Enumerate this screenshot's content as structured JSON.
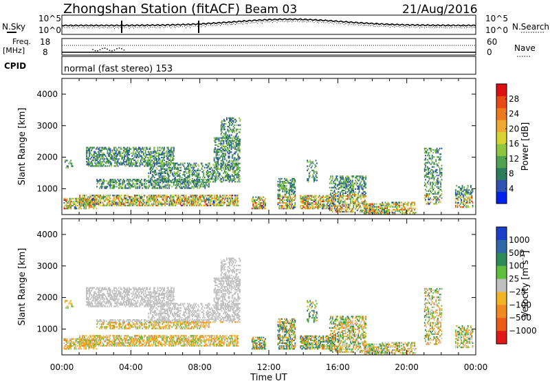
{
  "header": {
    "station": "Zhongshan Station (fitACF)",
    "beam": "Beam 03",
    "date": "21/Aug/2016"
  },
  "left_labels": {
    "nsky": "N.Sky",
    "freq_line1": "Freq.",
    "freq_line2": "[MHz]",
    "cpid": "CPID"
  },
  "right_labels": {
    "nsearch": "N.Search",
    "nave": "Nave"
  },
  "noise_axis": {
    "top": "10^5",
    "bottom": "10^0",
    "right_top": "10^5",
    "right_bottom": "10^0"
  },
  "freq_axis": {
    "top": "18",
    "bottom": "8",
    "nave_top": "60",
    "nave_bottom": "0"
  },
  "cpid_text": "normal (fast stereo) 153",
  "chart_data": [
    {
      "type": "heatmap",
      "name": "power",
      "xlabel": "Time UT",
      "ylabel": "Slant Range [km]",
      "xlim": [
        0,
        24
      ],
      "ylim": [
        180,
        4500
      ],
      "x_ticks": [
        "00:00",
        "04:00",
        "08:00",
        "12:00",
        "16:00",
        "20:00",
        "00:00"
      ],
      "y_ticks": [
        1000,
        2000,
        3000,
        4000
      ],
      "colorbar": {
        "label": "Power [dB]",
        "range": [
          0,
          32
        ],
        "ticks": [
          4,
          8,
          12,
          16,
          20,
          24,
          28
        ],
        "colors": [
          "#0022ee",
          "#2f52b0",
          "#2e7d5a",
          "#4fa34f",
          "#8ec63f",
          "#d8d232",
          "#f0a830",
          "#ee7a1e",
          "#e84a14",
          "#dd1111"
        ]
      }
    },
    {
      "type": "heatmap",
      "name": "velocity",
      "xlabel": "Time UT",
      "ylabel": "Slant Range [km]",
      "xlim": [
        0,
        24
      ],
      "ylim": [
        180,
        4500
      ],
      "x_ticks": [
        "00:00",
        "04:00",
        "08:00",
        "12:00",
        "16:00",
        "20:00",
        "00:00"
      ],
      "y_ticks": [
        1000,
        2000,
        3000,
        4000
      ],
      "colorbar": {
        "label": "Velocity [m s",
        "label_superscript": "-1",
        "label_close": "]",
        "tick_labels": [
          "1000",
          "500",
          "100",
          "25",
          "−25",
          "−100",
          "−500",
          "−1000"
        ],
        "colors": [
          "#1a3fc8",
          "#2f68a8",
          "#2e8a58",
          "#5fbf3a",
          "#c0c0c0",
          "#f3b326",
          "#f08a1e",
          "#ee5a18",
          "#e01818"
        ]
      }
    }
  ]
}
